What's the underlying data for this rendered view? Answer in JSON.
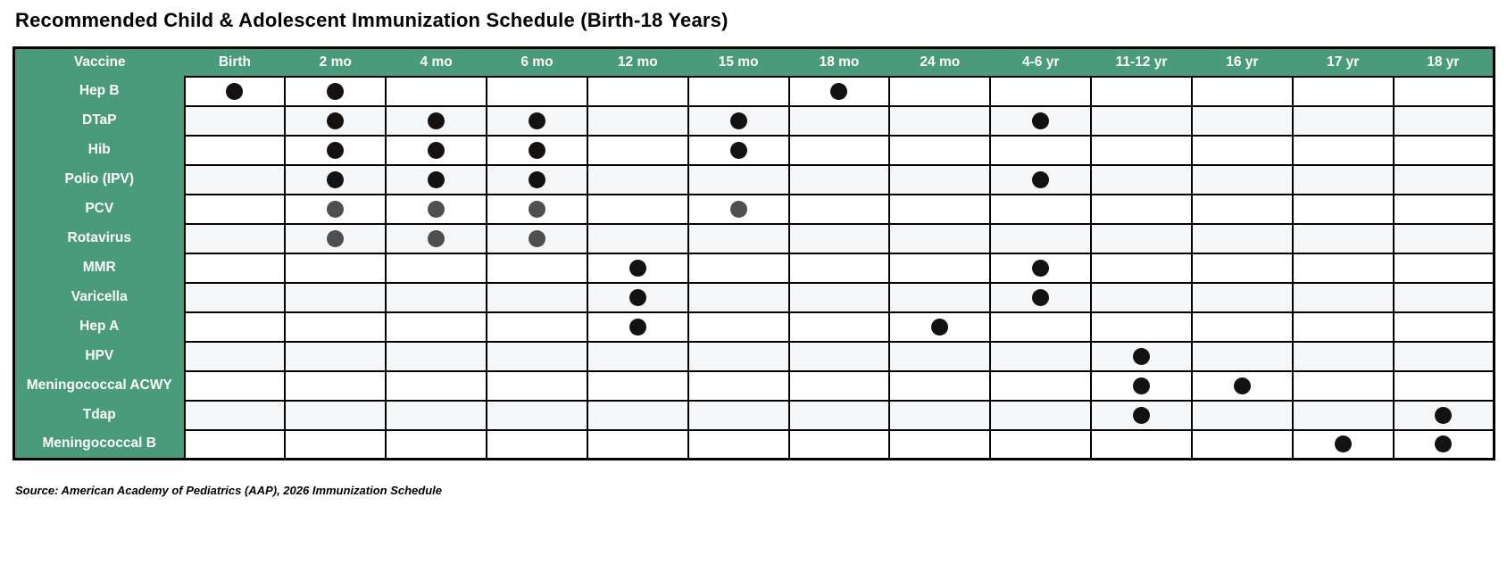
{
  "title": "Recommended Child & Adolescent Immunization Schedule (Birth-18 Years)",
  "source": "Source: American Academy of Pediatrics (AAP), 2026 Immunization Schedule",
  "colors": {
    "header_green": "#4a9a7c",
    "row_alt": "#f4f6f8",
    "dot_black": "#141210",
    "dot_gray": "#4f4f4f",
    "grid_border": "#000000"
  },
  "chart_data": {
    "type": "table",
    "title": "Recommended Child & Adolescent Immunization Schedule (Birth-18 Years)",
    "columns": [
      "Vaccine",
      "Birth",
      "2 mo",
      "4 mo",
      "6 mo",
      "12 mo",
      "15 mo",
      "18 mo",
      "24 mo",
      "4-6 yr",
      "11-12 yr",
      "16 yr",
      "17 yr",
      "18 yr"
    ],
    "marker_legend": {
      "black": "dose given (black dot)",
      "gray": "dose given (gray dot)"
    },
    "rows": [
      {
        "vaccine": "Hep B",
        "dot_color": "black",
        "doses": [
          "Birth",
          "2 mo",
          "18 mo"
        ]
      },
      {
        "vaccine": "DTaP",
        "dot_color": "black",
        "doses": [
          "2 mo",
          "4 mo",
          "6 mo",
          "15 mo",
          "4-6 yr"
        ]
      },
      {
        "vaccine": "Hib",
        "dot_color": "black",
        "doses": [
          "2 mo",
          "4 mo",
          "6 mo",
          "15 mo"
        ]
      },
      {
        "vaccine": "Polio (IPV)",
        "dot_color": "black",
        "doses": [
          "2 mo",
          "4 mo",
          "6 mo",
          "4-6 yr"
        ]
      },
      {
        "vaccine": "PCV",
        "dot_color": "gray",
        "doses": [
          "2 mo",
          "4 mo",
          "6 mo",
          "15 mo"
        ]
      },
      {
        "vaccine": "Rotavirus",
        "dot_color": "gray",
        "doses": [
          "2 mo",
          "4 mo",
          "6 mo"
        ]
      },
      {
        "vaccine": "MMR",
        "dot_color": "black",
        "doses": [
          "12 mo",
          "4-6 yr"
        ]
      },
      {
        "vaccine": "Varicella",
        "dot_color": "black",
        "doses": [
          "12 mo",
          "4-6 yr"
        ]
      },
      {
        "vaccine": "Hep A",
        "dot_color": "black",
        "doses": [
          "12 mo",
          "24 mo"
        ]
      },
      {
        "vaccine": "HPV",
        "dot_color": "black",
        "doses": [
          "11-12 yr"
        ]
      },
      {
        "vaccine": "Meningococcal ACWY",
        "dot_color": "black",
        "doses": [
          "11-12 yr",
          "16 yr"
        ]
      },
      {
        "vaccine": "Tdap",
        "dot_color": "black",
        "doses": [
          "11-12 yr",
          "18 yr"
        ]
      },
      {
        "vaccine": "Meningococcal B",
        "dot_color": "black",
        "doses": [
          "17 yr",
          "18 yr"
        ]
      }
    ]
  }
}
